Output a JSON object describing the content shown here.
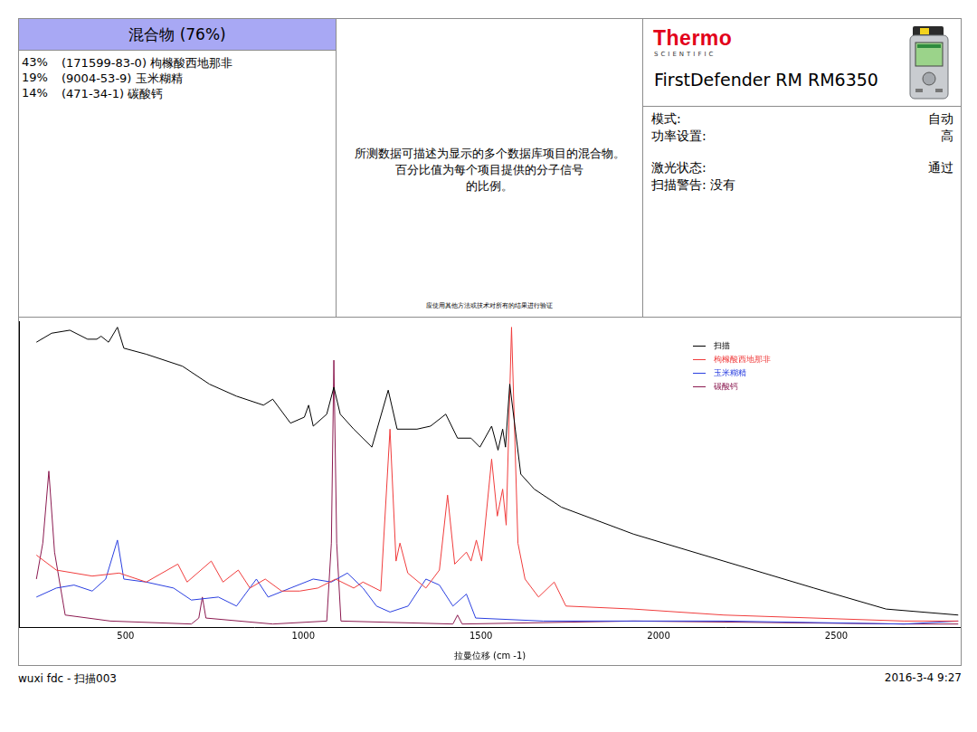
{
  "header": {
    "mixture": {
      "title": "混合物 (76%)",
      "components": [
        {
          "percent": "43%",
          "cas": "(171599-83-0)",
          "name": "枸橼酸西地那非"
        },
        {
          "percent": "19%",
          "cas": "(9004-53-9)",
          "name": "玉米糊精"
        },
        {
          "percent": "14%",
          "cas": "(471-34-1)",
          "name": "碳酸钙"
        }
      ]
    },
    "description": {
      "lines": [
        "所测数据可描述为显示的多个数据库项目的混合物。",
        "百分比值为每个项目提供的分子信号",
        "的比例。"
      ],
      "note": "应使用其他方法或技术对所有的结果进行验证"
    },
    "instrument": {
      "brand": "Thermo",
      "brand_sub": "SCIENTIFIC",
      "model": "FirstDefender RM RM6350",
      "settings": [
        [
          {
            "label": "模式:",
            "value": "自动"
          },
          {
            "label": "功率设置:",
            "value": "高"
          }
        ],
        [
          {
            "label": "激光状态:",
            "value": "通过"
          }
        ]
      ],
      "scan_warning": {
        "label": "扫描警告:",
        "value": "没有"
      }
    }
  },
  "chart_data": {
    "type": "line",
    "x_label": "拉曼位移 (cm -1)",
    "xlim": [
      200,
      2850
    ],
    "xticks": [
      500,
      1000,
      1500,
      2000,
      2500
    ],
    "ylim": [
      0,
      102
    ],
    "tick_labels": "x",
    "grid": false,
    "legend": "upper-right",
    "series": [
      {
        "name": "扫描",
        "color": "#000000",
        "x": [
          249,
          292,
          343,
          393,
          419,
          431,
          452,
          477,
          495,
          558,
          660,
          736,
          812,
          888,
          914,
          964,
          1003,
          1015,
          1028,
          1066,
          1086,
          1104,
          1142,
          1193,
          1239,
          1264,
          1320,
          1358,
          1401,
          1434,
          1472,
          1497,
          1530,
          1548,
          1561,
          1569,
          1581,
          1612,
          1650,
          1726,
          1929,
          2183,
          2437,
          2640,
          2843
        ],
        "values": [
          95,
          98,
          99,
          96,
          96,
          97,
          95,
          100,
          93,
          91,
          87,
          81,
          77,
          74,
          76,
          68,
          70,
          74,
          67,
          71,
          80,
          71,
          66,
          60,
          79,
          66,
          66,
          67,
          71,
          63,
          63,
          60,
          67,
          59,
          66,
          60,
          81,
          51,
          46,
          40,
          31,
          22,
          13,
          6,
          4
        ]
      },
      {
        "name": "枸橼酸西地那非",
        "color": "#f03c3c",
        "x": [
          249,
          305,
          406,
          482,
          558,
          647,
          673,
          741,
          774,
          817,
          850,
          893,
          939,
          990,
          1041,
          1091,
          1142,
          1168,
          1218,
          1244,
          1261,
          1272,
          1294,
          1345,
          1383,
          1406,
          1426,
          1459,
          1472,
          1487,
          1502,
          1530,
          1546,
          1561,
          1571,
          1586,
          1604,
          1624,
          1662,
          1706,
          1739,
          1929,
          2183,
          2690,
          2843
        ],
        "values": [
          24,
          19,
          17,
          18,
          15,
          21,
          15,
          22,
          15,
          19,
          13,
          16,
          12,
          12,
          13,
          16,
          13,
          15,
          12,
          66,
          22,
          28,
          18,
          13,
          19,
          44,
          21,
          25,
          22,
          29,
          22,
          56,
          37,
          46,
          34,
          100,
          28,
          16,
          10,
          15,
          7,
          6,
          4,
          2,
          2
        ]
      },
      {
        "name": "玉米糊精",
        "color": "#2a3fe0",
        "x": [
          249,
          305,
          355,
          406,
          444,
          477,
          495,
          558,
          635,
          685,
          761,
          812,
          868,
          901,
          964,
          1028,
          1079,
          1124,
          1168,
          1206,
          1244,
          1295,
          1345,
          1383,
          1421,
          1459,
          1485,
          1675,
          2183,
          2690,
          2843
        ],
        "values": [
          10,
          13,
          14,
          12,
          16,
          29,
          16,
          15,
          13,
          9,
          10,
          7,
          16,
          10,
          13,
          16,
          15,
          18,
          13,
          7,
          5,
          7,
          16,
          14,
          7,
          11,
          3,
          2,
          2,
          1,
          2
        ]
      },
      {
        "name": "碳酸钙",
        "color": "#8b1a50",
        "x": [
          249,
          267,
          284,
          300,
          330,
          457,
          685,
          706,
          716,
          726,
          914,
          1066,
          1079,
          1086,
          1094,
          1106,
          1421,
          1434,
          1447,
          1929,
          2690,
          2843
        ],
        "values": [
          16,
          28,
          52,
          25,
          4,
          2,
          1,
          3,
          10,
          3,
          1,
          2,
          28,
          89,
          28,
          2,
          1,
          4,
          1,
          2,
          1,
          1
        ]
      }
    ]
  },
  "footer": {
    "left": "wuxi fdc - 扫描003",
    "right": "2016-3-4 9:27"
  }
}
